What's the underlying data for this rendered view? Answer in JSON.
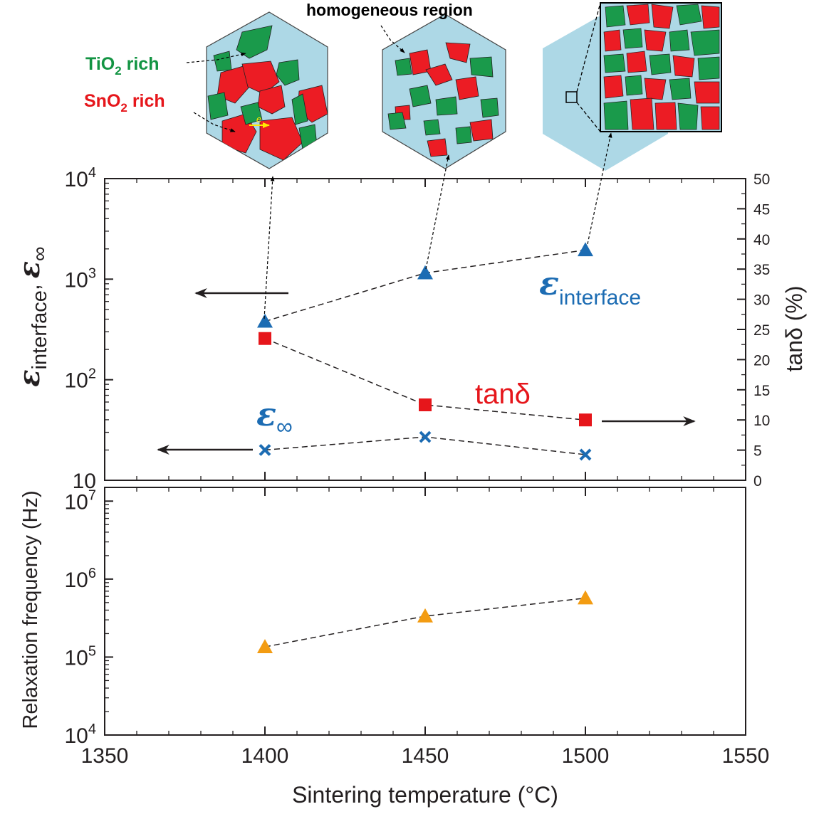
{
  "chart_data": [
    {
      "type": "scatter",
      "panel": "top",
      "xlabel": "Sintering temperature (°C)",
      "xlim": [
        1350,
        1550
      ],
      "x_ticks": [
        "1350",
        "1400",
        "1450",
        "1500",
        "1550"
      ],
      "ylabel_left": {
        "symbol": "ε",
        "sub1": "interface",
        "sep": ",",
        "sub2": "∞"
      },
      "yscale_left": "log",
      "ylim_left": [
        10,
        10000
      ],
      "y_ticks_left": [
        {
          "base": "10",
          "exp": "4"
        },
        {
          "base": "10",
          "exp": "3"
        },
        {
          "base": "10",
          "exp": "2"
        },
        {
          "base": "10",
          "exp": ""
        }
      ],
      "ylabel_right": "tanδ (%)",
      "ylim_right": [
        0,
        50
      ],
      "y_ticks_right": [
        "0",
        "5",
        "10",
        "15",
        "20",
        "25",
        "30",
        "35",
        "40",
        "45",
        "50"
      ],
      "series": [
        {
          "name": "ε_interface",
          "label": {
            "symbol": "ε",
            "sub": "interface"
          },
          "axis": "left",
          "marker": "triangle",
          "color": "#1c6cb3",
          "line": "dashed",
          "x": [
            1400,
            1450,
            1500
          ],
          "values": [
            380,
            1150,
            1950
          ]
        },
        {
          "name": "tanδ",
          "label": {
            "text": "tanδ"
          },
          "axis": "right",
          "marker": "square",
          "color": "#e6161b",
          "line": "dashed",
          "x": [
            1400,
            1450,
            1500
          ],
          "values": [
            23.5,
            12.5,
            10.0
          ]
        },
        {
          "name": "ε_∞",
          "label": {
            "symbol": "ε",
            "sub": "∞"
          },
          "axis": "left",
          "marker": "x",
          "color": "#1c6cb3",
          "line": "dashed",
          "x": [
            1400,
            1450,
            1500
          ],
          "values": [
            20,
            27,
            18
          ]
        }
      ],
      "arrows": [
        {
          "points_to": "left axis",
          "series": "ε_interface"
        },
        {
          "points_to": "left axis",
          "series": "ε_∞"
        },
        {
          "points_to": "right axis",
          "series": "tanδ"
        }
      ]
    },
    {
      "type": "scatter",
      "panel": "bottom",
      "xlabel": "Sintering temperature (°C)",
      "xlim": [
        1350,
        1550
      ],
      "ylabel": "Relaxation frequency (Hz)",
      "yscale": "log",
      "ylim": [
        10000,
        15000000
      ],
      "y_ticks": [
        {
          "base": "10",
          "exp": "7"
        },
        {
          "base": "10",
          "exp": "6"
        },
        {
          "base": "10",
          "exp": "5"
        },
        {
          "base": "10",
          "exp": "4"
        }
      ],
      "series": [
        {
          "name": "Relaxation frequency",
          "marker": "triangle",
          "color": "#f39c12",
          "line": "dashed",
          "x": [
            1400,
            1450,
            1500
          ],
          "values": [
            135000,
            335000,
            570000
          ]
        }
      ]
    }
  ],
  "insets": {
    "labels": {
      "tio2": {
        "a": "TiO",
        "sub": "2",
        "b": " rich",
        "color": "#139443"
      },
      "sno2": {
        "a": "SnO",
        "sub": "2",
        "b": " rich",
        "color": "#e6161b"
      },
      "homogeneous": "homogeneous region",
      "electron": "e"
    },
    "grain_colors": {
      "tio2": "#1a9a4b",
      "sno2": "#ec1c24",
      "matrix": "#add8e6"
    },
    "links": [
      {
        "from": "inset-1400",
        "to_x": 1400
      },
      {
        "from": "inset-1450",
        "to_x": 1450
      },
      {
        "from": "inset-1500",
        "to_x": 1500
      }
    ]
  }
}
